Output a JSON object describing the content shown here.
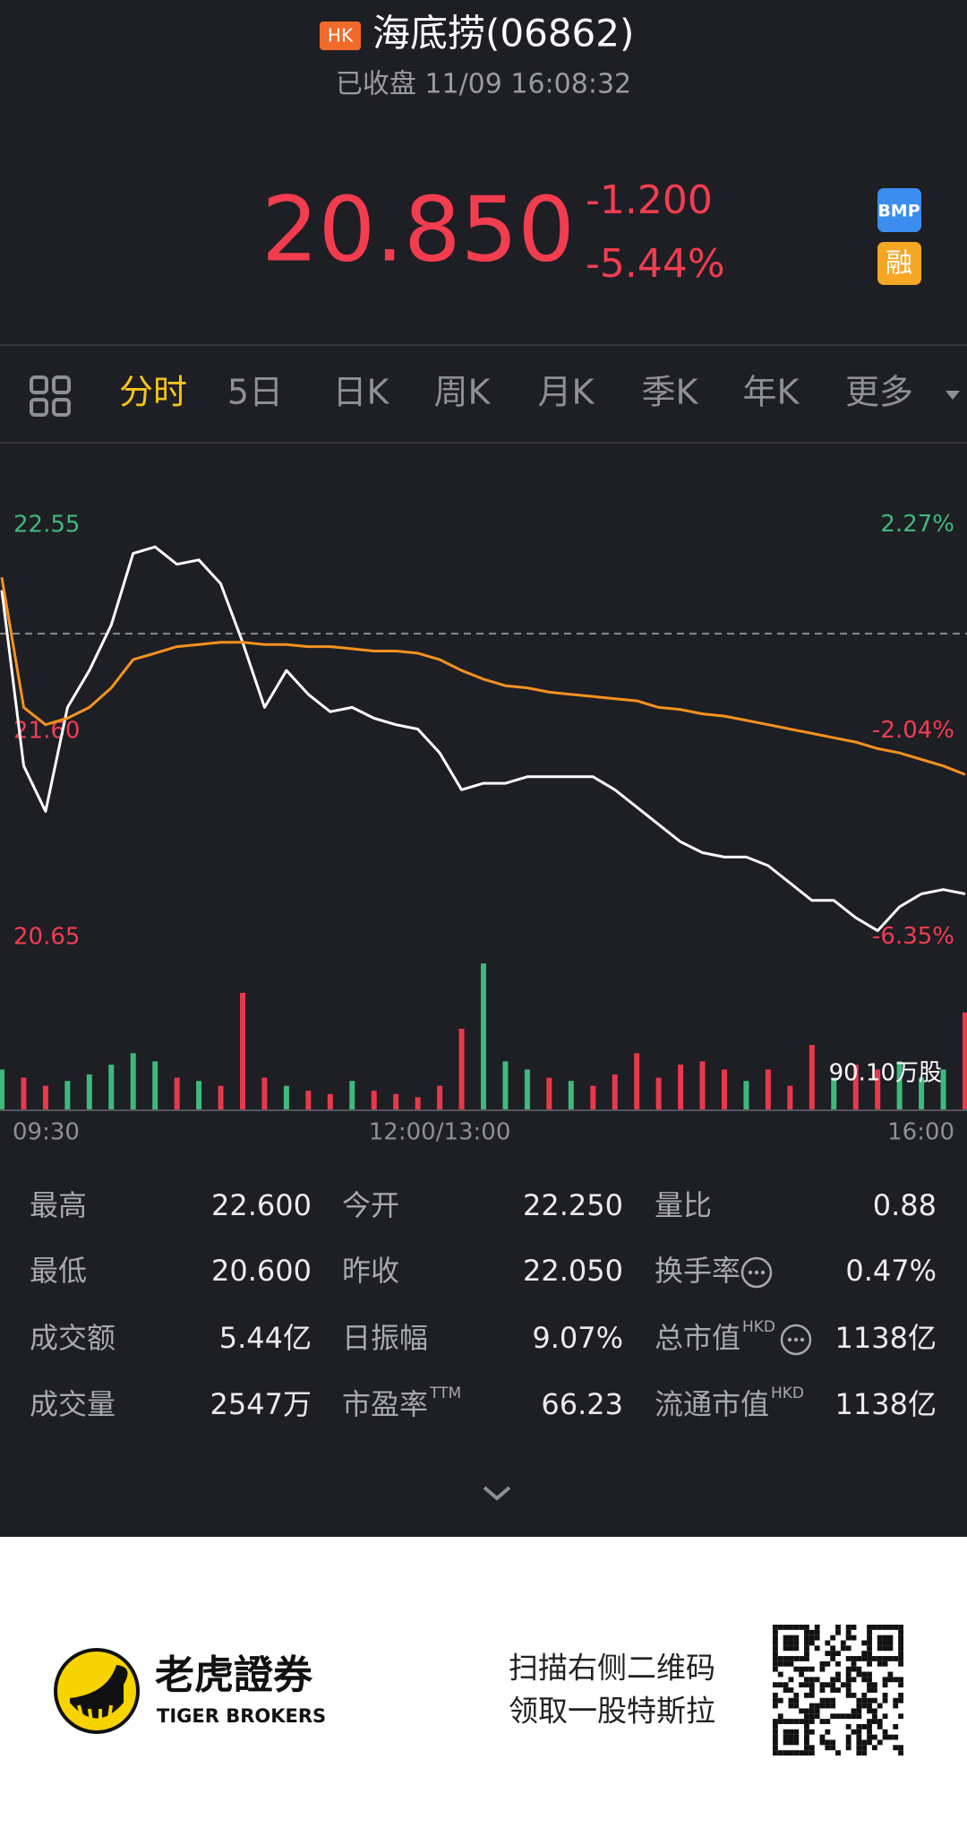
{
  "header": {
    "badge": "HK",
    "title": "海底捞(06862)",
    "subtitle": "已收盘 11/09 16:08:32",
    "price": "20.850",
    "change": "-1.200",
    "change_pct": "-5.44%",
    "badge_bmp": "BMP",
    "badge_margin": "融"
  },
  "tabs": {
    "items": [
      "分时",
      "5日",
      "日K",
      "周K",
      "月K",
      "季K",
      "年K",
      "更多"
    ],
    "active": 0
  },
  "chart_data": {
    "type": "line",
    "categories": [
      "09:30",
      null,
      null,
      null,
      null,
      null,
      null,
      null,
      null,
      null,
      null,
      null,
      null,
      null,
      null,
      null,
      null,
      null,
      null,
      null,
      "12:00/13:00",
      null,
      null,
      null,
      null,
      null,
      null,
      null,
      null,
      null,
      null,
      null,
      null,
      null,
      null,
      null,
      null,
      null,
      null,
      null,
      null,
      null,
      null,
      null,
      "16:00"
    ],
    "series": [
      {
        "name": "price",
        "color": "#ffffff",
        "values": [
          22.25,
          21.44,
          21.23,
          21.71,
          21.88,
          22.09,
          22.42,
          22.45,
          22.37,
          22.39,
          22.28,
          22.01,
          21.71,
          21.88,
          21.77,
          21.69,
          21.71,
          21.66,
          21.63,
          21.61,
          21.5,
          21.33,
          21.36,
          21.36,
          21.39,
          21.39,
          21.39,
          21.39,
          21.33,
          21.25,
          21.17,
          21.09,
          21.04,
          21.02,
          21.02,
          20.98,
          20.9,
          20.82,
          20.82,
          20.74,
          20.68,
          20.79,
          20.85,
          20.87,
          20.85
        ]
      },
      {
        "name": "average",
        "color": "#f5921e",
        "values": [
          22.31,
          21.71,
          21.63,
          21.66,
          21.71,
          21.8,
          21.93,
          21.96,
          21.99,
          22.0,
          22.01,
          22.01,
          22.0,
          22.0,
          21.99,
          21.99,
          21.98,
          21.97,
          21.97,
          21.96,
          21.93,
          21.88,
          21.84,
          21.81,
          21.8,
          21.78,
          21.77,
          21.76,
          21.75,
          21.74,
          21.71,
          21.7,
          21.68,
          21.67,
          21.65,
          21.63,
          21.61,
          21.59,
          21.57,
          21.55,
          21.52,
          21.5,
          21.47,
          21.44,
          21.4
        ]
      }
    ],
    "prev_close": 22.05,
    "ylim": [
      20.6,
      22.6
    ],
    "yticks": [
      22.55,
      {
        "value": 21.6,
        "label": "21.60"
      },
      20.65
    ],
    "ytick_colors": [
      "#3dba7b",
      "#f23d4f",
      "#f23d4f"
    ],
    "y2lim": [
      -6.58,
      2.49
    ],
    "y2ticks": [
      {
        "value": 2.27,
        "label": "2.27%"
      },
      {
        "value": -2.04,
        "label": "-2.04%"
      },
      {
        "value": -6.35,
        "label": "-6.35%"
      }
    ],
    "volume": {
      "values": [
        25,
        20,
        15,
        18,
        22,
        28,
        35,
        30,
        20,
        18,
        15,
        72,
        20,
        15,
        12,
        10,
        18,
        12,
        10,
        8,
        15,
        50,
        90,
        30,
        25,
        20,
        18,
        15,
        22,
        35,
        20,
        28,
        30,
        25,
        18,
        25,
        15,
        40,
        20,
        28,
        25,
        30,
        20,
        25,
        60
      ],
      "colors": [
        "#3dba7b",
        "#e8394a",
        "#e8394a",
        "#3dba7b",
        "#3dba7b",
        "#3dba7b",
        "#3dba7b",
        "#3dba7b",
        "#e8394a",
        "#3dba7b",
        "#e8394a",
        "#e8394a",
        "#e8394a",
        "#3dba7b",
        "#e8394a",
        "#e8394a",
        "#3dba7b",
        "#e8394a",
        "#e8394a",
        "#e8394a",
        "#e8394a",
        "#e8394a",
        "#3dba7b",
        "#3dba7b",
        "#3dba7b",
        "#e8394a",
        "#3dba7b",
        "#e8394a",
        "#e8394a",
        "#e8394a",
        "#e8394a",
        "#e8394a",
        "#e8394a",
        "#e8394a",
        "#3dba7b",
        "#e8394a",
        "#e8394a",
        "#e8394a",
        "#3dba7b",
        "#e8394a",
        "#e8394a",
        "#3dba7b",
        "#3dba7b",
        "#3dba7b",
        "#e8394a"
      ],
      "ylim": [
        0,
        90.1
      ],
      "yticks": [
        {
          "value": 90.1,
          "label": "90.10万股"
        }
      ]
    }
  },
  "stats": {
    "rows": [
      [
        [
          "最高",
          "22.600"
        ],
        [
          "今开",
          "22.250"
        ],
        [
          "量比",
          "0.88"
        ]
      ],
      [
        [
          "最低",
          "20.600"
        ],
        [
          "昨收",
          "22.050"
        ],
        [
          "换手率",
          "0.47%"
        ]
      ],
      [
        [
          "成交额",
          "5.44亿"
        ],
        [
          "日振幅",
          "9.07%"
        ],
        [
          "总市值",
          "1138亿",
          "HKD"
        ]
      ],
      [
        [
          "成交量",
          "2547万"
        ],
        [
          "市盈率",
          "66.23",
          "TTM"
        ],
        [
          "流通市值",
          "1138亿",
          "HKD"
        ]
      ]
    ]
  },
  "footer": {
    "brand": "老虎證券",
    "brand_en": "TIGER BROKERS",
    "promo": [
      "扫描右侧二维码",
      "领取一股特斯拉"
    ]
  }
}
